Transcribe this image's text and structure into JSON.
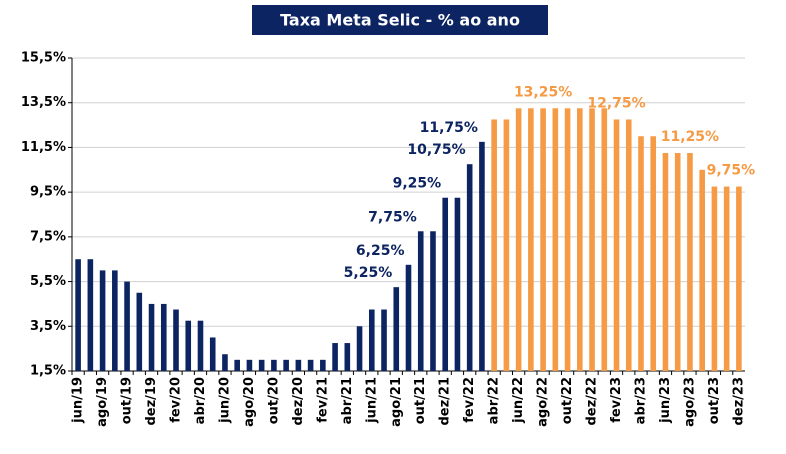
{
  "chart_data": {
    "type": "bar",
    "title": "Taxa Meta Selic - % ao ano",
    "categories": [
      "jun/19",
      null,
      "ago/19",
      null,
      "out/19",
      null,
      "dez/19",
      null,
      "fev/20",
      null,
      "abr/20",
      null,
      "jun/20",
      null,
      "ago/20",
      null,
      "out/20",
      null,
      "dez/20",
      null,
      "fev/21",
      null,
      "abr/21",
      null,
      "jun/21",
      null,
      "ago/21",
      null,
      "out/21",
      null,
      "dez/21",
      null,
      "fev/22",
      null,
      "abr/22",
      null,
      "jun/22",
      null,
      "ago/22",
      null,
      "out/22",
      null,
      "dez/22",
      null,
      "fev/23",
      null,
      "abr/23",
      null,
      "jun/23",
      null,
      "ago/23",
      null,
      "out/23",
      null,
      "dez/23"
    ],
    "values": [
      6.5,
      6.5,
      6.0,
      6.0,
      5.5,
      5.0,
      4.5,
      4.5,
      4.25,
      3.75,
      3.75,
      3.0,
      2.25,
      2.0,
      2.0,
      2.0,
      2.0,
      2.0,
      2.0,
      2.0,
      2.0,
      2.75,
      2.75,
      3.5,
      4.25,
      4.25,
      5.25,
      6.25,
      7.75,
      7.75,
      9.25,
      9.25,
      10.75,
      11.75,
      12.75,
      12.75,
      13.25,
      13.25,
      13.25,
      13.25,
      13.25,
      13.25,
      13.25,
      13.25,
      12.75,
      12.75,
      12.0,
      12.0,
      11.25,
      11.25,
      11.25,
      10.5,
      9.75,
      9.75,
      9.75
    ],
    "value_labels": [
      null,
      null,
      null,
      null,
      null,
      null,
      null,
      null,
      null,
      null,
      null,
      null,
      null,
      null,
      null,
      null,
      null,
      null,
      null,
      null,
      null,
      null,
      null,
      null,
      null,
      null,
      "5,25%",
      "6,25%",
      "7,75%",
      null,
      "9,25%",
      null,
      "10,75%",
      "11,75%",
      null,
      null,
      null,
      null,
      "13,25%",
      null,
      null,
      null,
      null,
      null,
      "12,75%",
      null,
      null,
      null,
      null,
      null,
      "11,25%",
      null,
      null,
      null,
      "9,75%"
    ],
    "colors": [
      "#0c2461",
      "#0c2461",
      "#0c2461",
      "#0c2461",
      "#0c2461",
      "#0c2461",
      "#0c2461",
      "#0c2461",
      "#0c2461",
      "#0c2461",
      "#0c2461",
      "#0c2461",
      "#0c2461",
      "#0c2461",
      "#0c2461",
      "#0c2461",
      "#0c2461",
      "#0c2461",
      "#0c2461",
      "#0c2461",
      "#0c2461",
      "#0c2461",
      "#0c2461",
      "#0c2461",
      "#0c2461",
      "#0c2461",
      "#0c2461",
      "#0c2461",
      "#0c2461",
      "#0c2461",
      "#0c2461",
      "#0c2461",
      "#0c2461",
      "#0c2461",
      "#f59a45",
      "#f59a45",
      "#f59a45",
      "#f59a45",
      "#f59a45",
      "#f59a45",
      "#f59a45",
      "#f59a45",
      "#f59a45",
      "#f59a45",
      "#f59a45",
      "#f59a45",
      "#f59a45",
      "#f59a45",
      "#f59a45",
      "#f59a45",
      "#f59a45",
      "#f59a45",
      "#f59a45",
      "#f59a45",
      "#f59a45"
    ],
    "ylim": [
      1.5,
      15.5
    ],
    "yticks": [
      {
        "value": 1.5,
        "label": "1,5%"
      },
      {
        "value": 3.5,
        "label": "3,5%"
      },
      {
        "value": 5.5,
        "label": "5,5%"
      },
      {
        "value": 7.5,
        "label": "7,5%"
      },
      {
        "value": 9.5,
        "label": "9,5%"
      },
      {
        "value": 11.5,
        "label": "11,5%"
      },
      {
        "value": 13.5,
        "label": "13,5%"
      },
      {
        "value": 15.5,
        "label": "15,5%"
      }
    ],
    "grid": true
  }
}
